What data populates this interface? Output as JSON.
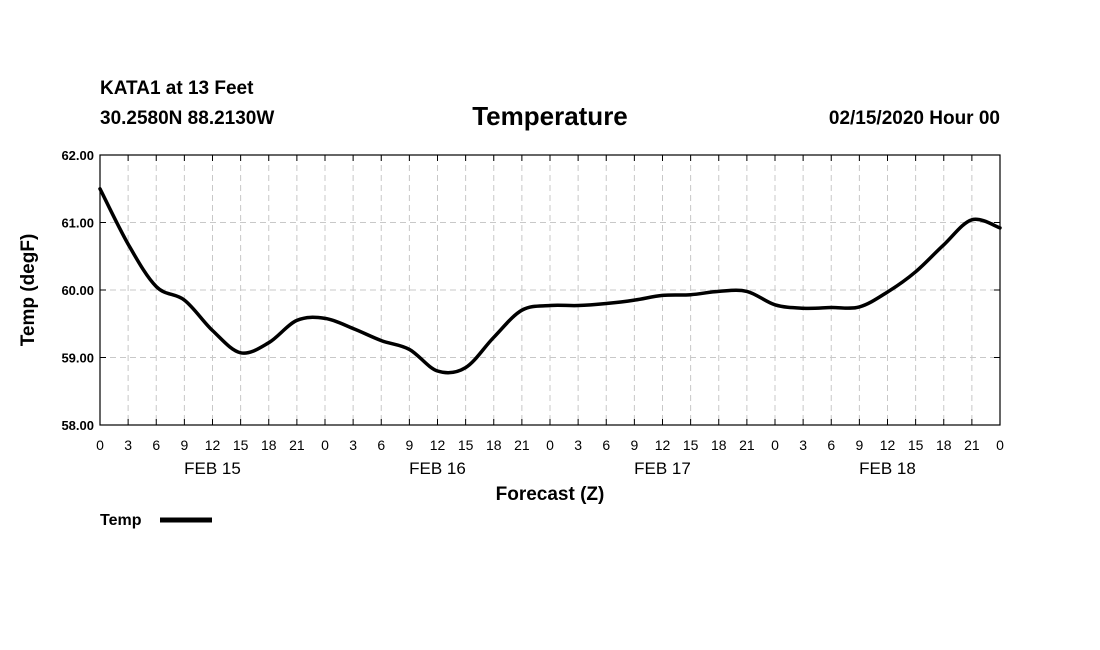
{
  "header": {
    "station_line1": "KATA1 at 13 Feet",
    "station_line2": "30.2580N 88.2130W",
    "title": "Temperature",
    "run_time": "02/15/2020 Hour 00"
  },
  "legend": {
    "label": "Temp"
  },
  "colors": {
    "line": "#000000",
    "grid": "#c8c8c8",
    "background": "#ffffff"
  },
  "chart_data": {
    "type": "line",
    "title": "Temperature",
    "xlabel": "Forecast (Z)",
    "ylabel": "Temp (degF)",
    "xlim": [
      0,
      96
    ],
    "ylim": [
      58,
      62
    ],
    "yticks": [
      "58.00",
      "59.00",
      "60.00",
      "61.00",
      "62.00"
    ],
    "xtick_hours": [
      0,
      3,
      6,
      9,
      12,
      15,
      18,
      21,
      24,
      27,
      30,
      33,
      36,
      39,
      42,
      45,
      48,
      51,
      54,
      57,
      60,
      63,
      66,
      69,
      72,
      75,
      78,
      81,
      84,
      87,
      90,
      93,
      96
    ],
    "xtick_labels": [
      "0",
      "3",
      "6",
      "9",
      "12",
      "15",
      "18",
      "21",
      "0",
      "3",
      "6",
      "9",
      "12",
      "15",
      "18",
      "21",
      "0",
      "3",
      "6",
      "9",
      "12",
      "15",
      "18",
      "21",
      "0",
      "3",
      "6",
      "9",
      "12",
      "15",
      "18",
      "21",
      "0"
    ],
    "day_labels": [
      {
        "text": "FEB 15",
        "hour": 12
      },
      {
        "text": "FEB 16",
        "hour": 36
      },
      {
        "text": "FEB 17",
        "hour": 60
      },
      {
        "text": "FEB 18",
        "hour": 84
      }
    ],
    "grid": true,
    "legend_position": "bottom-left",
    "series": [
      {
        "name": "Temp",
        "x": [
          0,
          3,
          6,
          9,
          12,
          15,
          18,
          21,
          24,
          27,
          30,
          33,
          36,
          39,
          42,
          45,
          48,
          51,
          54,
          57,
          60,
          63,
          66,
          69,
          72,
          75,
          78,
          81,
          84,
          87,
          90,
          93,
          96
        ],
        "y": [
          61.5,
          60.68,
          60.05,
          59.85,
          59.4,
          59.07,
          59.22,
          59.55,
          59.58,
          59.43,
          59.25,
          59.12,
          58.8,
          58.85,
          59.3,
          59.7,
          59.77,
          59.77,
          59.8,
          59.85,
          59.92,
          59.93,
          59.98,
          59.98,
          59.78,
          59.73,
          59.74,
          59.75,
          59.97,
          60.27,
          60.67,
          61.04,
          60.92
        ]
      }
    ]
  }
}
